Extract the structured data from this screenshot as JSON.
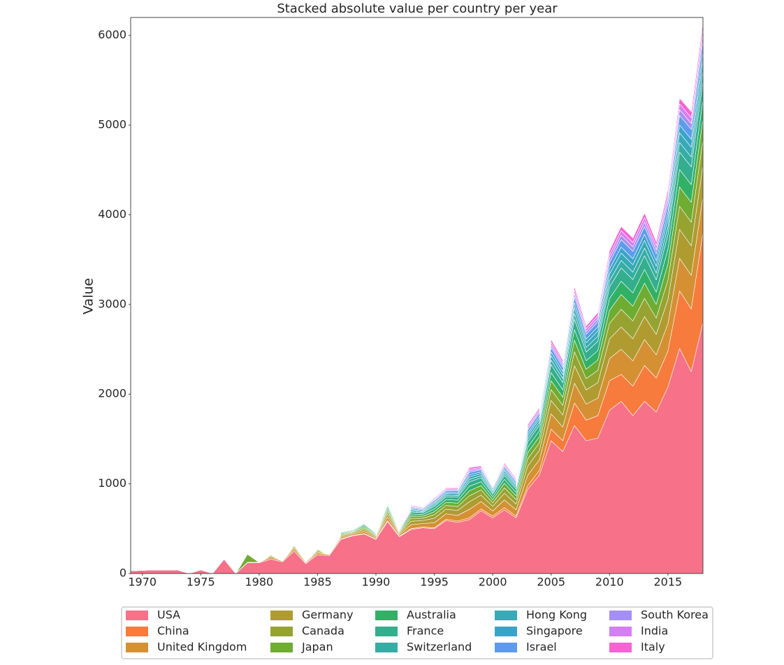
{
  "chart_data": {
    "type": "stackedarea",
    "title": "Stacked absolute value per country per year",
    "y_label": "Value",
    "x": [
      1969,
      1970,
      1971,
      1972,
      1973,
      1974,
      1975,
      1976,
      1977,
      1978,
      1979,
      1980,
      1981,
      1982,
      1983,
      1984,
      1985,
      1986,
      1987,
      1988,
      1989,
      1990,
      1991,
      1992,
      1993,
      1994,
      1995,
      1996,
      1997,
      1998,
      1999,
      2000,
      2001,
      2002,
      2003,
      2004,
      2005,
      2006,
      2007,
      2008,
      2009,
      2010,
      2011,
      2012,
      2013,
      2014,
      2015,
      2016,
      2017,
      2018
    ],
    "xlim": [
      1969,
      2018
    ],
    "xticks": [
      1970,
      1975,
      1980,
      1985,
      1990,
      1995,
      2000,
      2005,
      2010,
      2015
    ],
    "ylim": [
      0,
      6200
    ],
    "yticks": [
      0,
      1000,
      2000,
      3000,
      4000,
      5000,
      6000
    ],
    "grid": false,
    "legend": "bottom",
    "series": [
      {
        "name": "USA",
        "color": "#f77189",
        "values": [
          30,
          35,
          40,
          40,
          40,
          0,
          40,
          0,
          160,
          0,
          120,
          120,
          160,
          130,
          250,
          110,
          210,
          200,
          380,
          420,
          440,
          380,
          580,
          410,
          490,
          510,
          500,
          590,
          570,
          600,
          700,
          620,
          710,
          620,
          940,
          1100,
          1480,
          1360,
          1650,
          1480,
          1510,
          1820,
          1920,
          1760,
          1920,
          1800,
          2080,
          2510,
          2250,
          2800
        ]
      },
      {
        "name": "China",
        "color": "#f77b3c",
        "values": [
          0,
          0,
          0,
          0,
          0,
          0,
          0,
          0,
          0,
          0,
          0,
          0,
          0,
          0,
          0,
          0,
          0,
          0,
          5,
          5,
          5,
          5,
          10,
          5,
          10,
          10,
          10,
          15,
          15,
          20,
          20,
          20,
          25,
          20,
          40,
          50,
          130,
          120,
          250,
          230,
          250,
          330,
          300,
          330,
          400,
          380,
          400,
          640,
          700,
          1000
        ]
      },
      {
        "name": "United Kingdom",
        "color": "#d59033",
        "values": [
          0,
          0,
          0,
          0,
          0,
          0,
          0,
          0,
          0,
          0,
          5,
          5,
          20,
          10,
          25,
          10,
          20,
          10,
          17,
          14,
          24,
          15,
          39,
          17,
          44,
          37,
          56,
          60,
          63,
          95,
          82,
          58,
          85,
          71,
          116,
          119,
          170,
          153,
          221,
          179,
          196,
          247,
          280,
          280,
          289,
          258,
          306,
          365,
          374,
          400
        ]
      },
      {
        "name": "Germany",
        "color": "#b09b31",
        "values": [
          0,
          0,
          0,
          0,
          0,
          0,
          0,
          0,
          0,
          0,
          0,
          0,
          15,
          0,
          20,
          10,
          15,
          0,
          15,
          12,
          21,
          14,
          35,
          15,
          39,
          33,
          50,
          52,
          55,
          84,
          72,
          51,
          75,
          63,
          102,
          105,
          150,
          135,
          195,
          158,
          172,
          218,
          248,
          248,
          255,
          228,
          270,
          322,
          330,
          352
        ]
      },
      {
        "name": "Canada",
        "color": "#97a331",
        "values": [
          0,
          0,
          0,
          0,
          0,
          0,
          0,
          0,
          0,
          0,
          0,
          0,
          10,
          0,
          15,
          0,
          15,
          0,
          12,
          10,
          17,
          11,
          28,
          12,
          31,
          26,
          40,
          42,
          44,
          67,
          58,
          41,
          60,
          50,
          82,
          84,
          120,
          108,
          156,
          126,
          138,
          174,
          198,
          198,
          204,
          182,
          216,
          258,
          264,
          282
        ]
      },
      {
        "name": "Japan",
        "color": "#6fac32",
        "values": [
          0,
          0,
          0,
          0,
          0,
          0,
          0,
          0,
          0,
          0,
          90,
          0,
          5,
          0,
          10,
          0,
          10,
          0,
          10,
          8,
          14,
          9,
          23,
          10,
          26,
          22,
          33,
          35,
          37,
          56,
          48,
          34,
          50,
          42,
          68,
          70,
          100,
          90,
          130,
          105,
          115,
          145,
          165,
          165,
          170,
          152,
          180,
          215,
          220,
          235
        ]
      },
      {
        "name": "Australia",
        "color": "#32b166",
        "values": [
          0,
          0,
          0,
          0,
          0,
          0,
          0,
          0,
          0,
          0,
          0,
          0,
          0,
          0,
          0,
          0,
          0,
          0,
          9,
          7,
          13,
          8,
          21,
          9,
          23,
          20,
          30,
          31,
          33,
          50,
          43,
          31,
          45,
          38,
          61,
          63,
          90,
          81,
          117,
          95,
          104,
          130,
          148,
          148,
          153,
          137,
          162,
          194,
          198,
          212
        ]
      },
      {
        "name": "France",
        "color": "#34ae8d",
        "values": [
          0,
          0,
          0,
          0,
          0,
          0,
          0,
          0,
          0,
          0,
          0,
          0,
          0,
          0,
          0,
          0,
          0,
          0,
          9,
          7,
          13,
          8,
          21,
          9,
          23,
          20,
          30,
          31,
          33,
          50,
          43,
          31,
          45,
          38,
          61,
          63,
          90,
          81,
          117,
          95,
          104,
          130,
          148,
          148,
          153,
          137,
          162,
          194,
          198,
          212
        ]
      },
      {
        "name": "Switzerland",
        "color": "#36ada4",
        "values": [
          0,
          0,
          0,
          0,
          0,
          0,
          0,
          0,
          0,
          0,
          0,
          0,
          0,
          0,
          0,
          0,
          0,
          0,
          5,
          4,
          7,
          5,
          12,
          5,
          13,
          11,
          16,
          18,
          19,
          28,
          24,
          17,
          25,
          21,
          34,
          35,
          50,
          45,
          65,
          52,
          57,
          72,
          83,
          83,
          85,
          76,
          90,
          108,
          110,
          118
        ]
      },
      {
        "name": "Hong Kong",
        "color": "#38aab6",
        "values": [
          0,
          0,
          0,
          0,
          0,
          0,
          0,
          0,
          0,
          0,
          0,
          0,
          0,
          0,
          0,
          0,
          0,
          0,
          5,
          4,
          7,
          4,
          11,
          5,
          13,
          11,
          16,
          18,
          19,
          28,
          24,
          17,
          25,
          21,
          34,
          35,
          50,
          45,
          65,
          52,
          57,
          72,
          83,
          83,
          85,
          76,
          90,
          108,
          110,
          118
        ]
      },
      {
        "name": "Singapore",
        "color": "#3ba3cb",
        "values": [
          0,
          0,
          0,
          0,
          0,
          0,
          0,
          0,
          0,
          0,
          0,
          0,
          0,
          0,
          0,
          0,
          0,
          0,
          4,
          3,
          6,
          4,
          9,
          4,
          10,
          9,
          13,
          14,
          15,
          22,
          19,
          14,
          20,
          17,
          27,
          28,
          40,
          36,
          52,
          42,
          46,
          58,
          66,
          66,
          68,
          61,
          72,
          86,
          88,
          94
        ]
      },
      {
        "name": "Israel",
        "color": "#5d9cea",
        "values": [
          0,
          0,
          0,
          0,
          0,
          0,
          0,
          0,
          0,
          0,
          0,
          0,
          0,
          0,
          0,
          0,
          0,
          0,
          5,
          4,
          7,
          4,
          12,
          5,
          13,
          11,
          17,
          17,
          18,
          28,
          24,
          17,
          25,
          21,
          34,
          35,
          50,
          45,
          65,
          52,
          57,
          72,
          83,
          83,
          85,
          76,
          90,
          108,
          110,
          118
        ]
      },
      {
        "name": "South Korea",
        "color": "#a48ff4",
        "values": [
          0,
          0,
          0,
          0,
          0,
          0,
          0,
          0,
          0,
          0,
          0,
          0,
          0,
          0,
          0,
          0,
          0,
          0,
          3,
          2,
          4,
          3,
          7,
          3,
          8,
          7,
          10,
          11,
          11,
          17,
          14,
          10,
          15,
          13,
          20,
          21,
          30,
          27,
          39,
          32,
          35,
          44,
          50,
          50,
          51,
          46,
          54,
          64,
          66,
          70
        ]
      },
      {
        "name": "India",
        "color": "#d67ef4",
        "values": [
          0,
          0,
          0,
          0,
          0,
          0,
          0,
          0,
          0,
          0,
          0,
          0,
          0,
          0,
          0,
          0,
          0,
          0,
          3,
          2,
          4,
          3,
          7,
          3,
          8,
          7,
          10,
          11,
          11,
          17,
          14,
          10,
          15,
          13,
          20,
          21,
          30,
          27,
          39,
          32,
          35,
          44,
          50,
          50,
          51,
          46,
          54,
          64,
          66,
          70
        ]
      },
      {
        "name": "Italy",
        "color": "#f563d4",
        "values": [
          0,
          0,
          0,
          0,
          0,
          0,
          0,
          0,
          0,
          0,
          0,
          0,
          0,
          0,
          0,
          0,
          0,
          0,
          3,
          3,
          3,
          2,
          5,
          3,
          9,
          6,
          9,
          10,
          12,
          18,
          15,
          9,
          15,
          12,
          21,
          21,
          30,
          27,
          39,
          30,
          34,
          44,
          48,
          48,
          51,
          45,
          54,
          64,
          66,
          69
        ]
      }
    ]
  }
}
